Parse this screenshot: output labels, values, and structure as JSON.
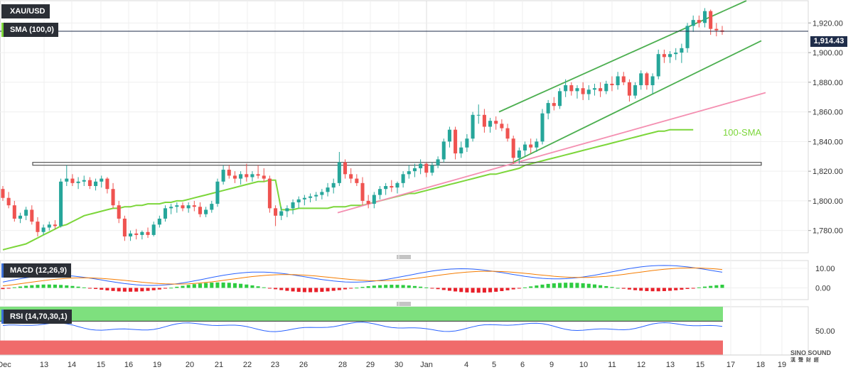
{
  "labels": {
    "symbol": "XAU/USD",
    "sma": "SMA (100,0)",
    "macd": "MACD (12,26,9)",
    "rsi": "RSI (14,70,30,1)",
    "sma_annotation": "100-SMA",
    "last_price": "1,914.43",
    "watermark": "SINO SOUND",
    "watermark_sub": "漢 聲 財 經"
  },
  "colors": {
    "up": "#26a69a",
    "down": "#ef5350",
    "sma": "#7cd63a",
    "trend_channel": "#4caf50",
    "support_line": "#f48fb1",
    "horizontal_zone": "#555555",
    "macd_line": "#2962ff",
    "signal_line": "#f57c00",
    "rsi_line": "#2962ff",
    "rsi_overbought": "#7ee07e",
    "rsi_oversold": "#f06b6b"
  },
  "chart_data": [
    {
      "type": "candlestick",
      "panel": "price",
      "x_ticks": [
        "Dec",
        "13",
        "14",
        "15",
        "16",
        "19",
        "20",
        "21",
        "22",
        "23",
        "26",
        "28",
        "29",
        "30",
        "Jan",
        "4",
        "5",
        "6",
        "9",
        "10",
        "11",
        "12",
        "13",
        "15",
        "17",
        "18",
        "19"
      ],
      "y_ticks": [
        "1,780.00",
        "1,800.00",
        "1,820.00",
        "1,840.00",
        "1,860.00",
        "1,880.00",
        "1,900.00",
        "1,920.00"
      ],
      "ylim": [
        1765,
        1935
      ],
      "last_price": 1914.43,
      "horizontal_level": 1825,
      "candles_ohlc": [
        [
          1808,
          1810,
          1800,
          1802
        ],
        [
          1802,
          1806,
          1795,
          1797
        ],
        [
          1797,
          1800,
          1786,
          1788
        ],
        [
          1788,
          1792,
          1785,
          1790
        ],
        [
          1790,
          1796,
          1787,
          1794
        ],
        [
          1794,
          1797,
          1784,
          1786
        ],
        [
          1786,
          1789,
          1776,
          1779
        ],
        [
          1779,
          1784,
          1777,
          1782
        ],
        [
          1782,
          1786,
          1780,
          1784
        ],
        [
          1784,
          1787,
          1781,
          1783
        ],
        [
          1783,
          1815,
          1782,
          1813
        ],
        [
          1813,
          1824,
          1810,
          1815
        ],
        [
          1815,
          1818,
          1810,
          1812
        ],
        [
          1812,
          1816,
          1808,
          1813
        ],
        [
          1813,
          1817,
          1810,
          1814
        ],
        [
          1814,
          1816,
          1808,
          1810
        ],
        [
          1810,
          1815,
          1807,
          1813
        ],
        [
          1813,
          1817,
          1809,
          1815
        ],
        [
          1815,
          1816,
          1805,
          1808
        ],
        [
          1808,
          1812,
          1795,
          1797
        ],
        [
          1797,
          1800,
          1785,
          1788
        ],
        [
          1788,
          1790,
          1773,
          1776
        ],
        [
          1776,
          1780,
          1773,
          1778
        ],
        [
          1778,
          1781,
          1774,
          1777
        ],
        [
          1777,
          1780,
          1774,
          1779
        ],
        [
          1779,
          1782,
          1775,
          1777
        ],
        [
          1777,
          1786,
          1776,
          1784
        ],
        [
          1784,
          1790,
          1782,
          1788
        ],
        [
          1788,
          1797,
          1786,
          1795
        ],
        [
          1795,
          1798,
          1791,
          1796
        ],
        [
          1796,
          1799,
          1792,
          1797
        ],
        [
          1797,
          1799,
          1793,
          1795
        ],
        [
          1795,
          1799,
          1792,
          1797
        ],
        [
          1797,
          1800,
          1793,
          1796
        ],
        [
          1796,
          1799,
          1789,
          1791
        ],
        [
          1791,
          1796,
          1789,
          1794
        ],
        [
          1794,
          1800,
          1792,
          1798
        ],
        [
          1798,
          1815,
          1796,
          1813
        ],
        [
          1813,
          1824,
          1811,
          1821
        ],
        [
          1821,
          1824,
          1815,
          1817
        ],
        [
          1817,
          1820,
          1812,
          1815
        ],
        [
          1815,
          1820,
          1811,
          1818
        ],
        [
          1818,
          1825,
          1813,
          1816
        ],
        [
          1816,
          1820,
          1813,
          1818
        ],
        [
          1818,
          1824,
          1815,
          1817
        ],
        [
          1817,
          1822,
          1813,
          1815
        ],
        [
          1815,
          1817,
          1792,
          1795
        ],
        [
          1795,
          1797,
          1783,
          1790
        ],
        [
          1790,
          1796,
          1787,
          1793
        ],
        [
          1793,
          1797,
          1789,
          1795
        ],
        [
          1795,
          1801,
          1791,
          1799
        ],
        [
          1799,
          1803,
          1795,
          1801
        ],
        [
          1801,
          1804,
          1797,
          1802
        ],
        [
          1802,
          1805,
          1799,
          1803
        ],
        [
          1803,
          1806,
          1800,
          1804
        ],
        [
          1804,
          1808,
          1801,
          1806
        ],
        [
          1806,
          1812,
          1803,
          1809
        ],
        [
          1809,
          1815,
          1805,
          1812
        ],
        [
          1812,
          1833,
          1810,
          1826
        ],
        [
          1826,
          1828,
          1815,
          1818
        ],
        [
          1818,
          1822,
          1812,
          1815
        ],
        [
          1815,
          1818,
          1810,
          1812
        ],
        [
          1812,
          1816,
          1797,
          1800
        ],
        [
          1800,
          1804,
          1795,
          1798
        ],
        [
          1798,
          1806,
          1795,
          1804
        ],
        [
          1804,
          1810,
          1801,
          1808
        ],
        [
          1808,
          1812,
          1804,
          1810
        ],
        [
          1810,
          1814,
          1806,
          1809
        ],
        [
          1809,
          1813,
          1805,
          1812
        ],
        [
          1812,
          1820,
          1809,
          1818
        ],
        [
          1818,
          1824,
          1815,
          1820
        ],
        [
          1820,
          1825,
          1816,
          1822
        ],
        [
          1822,
          1828,
          1818,
          1825
        ],
        [
          1825,
          1826,
          1816,
          1819
        ],
        [
          1819,
          1826,
          1817,
          1824
        ],
        [
          1824,
          1830,
          1822,
          1828
        ],
        [
          1828,
          1842,
          1826,
          1840
        ],
        [
          1840,
          1850,
          1836,
          1848
        ],
        [
          1848,
          1850,
          1828,
          1832
        ],
        [
          1832,
          1840,
          1829,
          1836
        ],
        [
          1836,
          1845,
          1833,
          1842
        ],
        [
          1842,
          1860,
          1840,
          1858
        ],
        [
          1858,
          1865,
          1852,
          1858
        ],
        [
          1858,
          1862,
          1846,
          1850
        ],
        [
          1850,
          1856,
          1846,
          1854
        ],
        [
          1854,
          1857,
          1848,
          1852
        ],
        [
          1852,
          1855,
          1847,
          1849
        ],
        [
          1849,
          1852,
          1840,
          1842
        ],
        [
          1842,
          1844,
          1825,
          1829
        ],
        [
          1829,
          1836,
          1825,
          1834
        ],
        [
          1834,
          1840,
          1830,
          1838
        ],
        [
          1838,
          1842,
          1832,
          1836
        ],
        [
          1836,
          1842,
          1833,
          1840
        ],
        [
          1840,
          1862,
          1838,
          1859
        ],
        [
          1859,
          1868,
          1855,
          1866
        ],
        [
          1866,
          1870,
          1861,
          1864
        ],
        [
          1864,
          1876,
          1862,
          1874
        ],
        [
          1874,
          1882,
          1870,
          1878
        ],
        [
          1878,
          1880,
          1871,
          1874
        ],
        [
          1874,
          1878,
          1869,
          1876
        ],
        [
          1876,
          1880,
          1868,
          1872
        ],
        [
          1872,
          1878,
          1868,
          1875
        ],
        [
          1875,
          1879,
          1871,
          1876
        ],
        [
          1876,
          1880,
          1870,
          1874
        ],
        [
          1874,
          1881,
          1872,
          1879
        ],
        [
          1879,
          1884,
          1874,
          1878
        ],
        [
          1878,
          1887,
          1875,
          1884
        ],
        [
          1884,
          1887,
          1878,
          1880
        ],
        [
          1880,
          1882,
          1867,
          1871
        ],
        [
          1871,
          1880,
          1869,
          1878
        ],
        [
          1878,
          1888,
          1875,
          1886
        ],
        [
          1886,
          1887,
          1875,
          1878
        ],
        [
          1878,
          1886,
          1872,
          1884
        ],
        [
          1884,
          1902,
          1882,
          1899
        ],
        [
          1899,
          1902,
          1893,
          1897
        ],
        [
          1897,
          1901,
          1893,
          1899
        ],
        [
          1899,
          1903,
          1895,
          1900
        ],
        [
          1900,
          1906,
          1893,
          1903
        ],
        [
          1903,
          1920,
          1900,
          1918
        ],
        [
          1918,
          1925,
          1914,
          1922
        ],
        [
          1922,
          1925,
          1917,
          1920
        ],
        [
          1920,
          1930,
          1917,
          1928
        ],
        [
          1928,
          1929,
          1912,
          1916
        ],
        [
          1916,
          1920,
          1911,
          1915
        ],
        [
          1915,
          1918,
          1912,
          1914
        ]
      ],
      "sma_100": [
        1767,
        1768,
        1769,
        1770,
        1771,
        1773,
        1775,
        1777,
        1779,
        1781,
        1783,
        1784,
        1786,
        1788,
        1790,
        1791,
        1792,
        1793,
        1794,
        1795,
        1795,
        1796,
        1796,
        1797,
        1797,
        1798,
        1798,
        1798,
        1799,
        1799,
        1800,
        1800,
        1801,
        1802,
        1803,
        1804,
        1805,
        1806,
        1807,
        1808,
        1809,
        1810,
        1811,
        1812,
        1813,
        1813,
        1814,
        1814,
        1794,
        1794,
        1794,
        1795,
        1795,
        1795,
        1795,
        1795,
        1795,
        1796,
        1796,
        1796,
        1797,
        1797,
        1797,
        1798,
        1799,
        1800,
        1801,
        1802,
        1803,
        1804,
        1805,
        1805,
        1806,
        1807,
        1808,
        1809,
        1810,
        1811,
        1812,
        1813,
        1814,
        1815,
        1816,
        1817,
        1818,
        1818,
        1819,
        1820,
        1821,
        1822,
        1824,
        1825,
        1826,
        1827,
        1828,
        1829,
        1830,
        1831,
        1832,
        1833,
        1834,
        1835,
        1836,
        1837,
        1838,
        1839,
        1840,
        1841,
        1842,
        1843,
        1844,
        1845,
        1846,
        1847,
        1847,
        1848,
        1848,
        1848,
        1848,
        1848
      ]
    },
    {
      "type": "bar",
      "panel": "macd",
      "y_ticks": [
        "0.00",
        "10.00"
      ],
      "ylim": [
        -6,
        14
      ]
    },
    {
      "type": "line",
      "panel": "rsi",
      "y_ticks": [
        "50.00"
      ],
      "ylim": [
        0,
        100
      ],
      "overbought": 70,
      "oversold": 30
    }
  ]
}
